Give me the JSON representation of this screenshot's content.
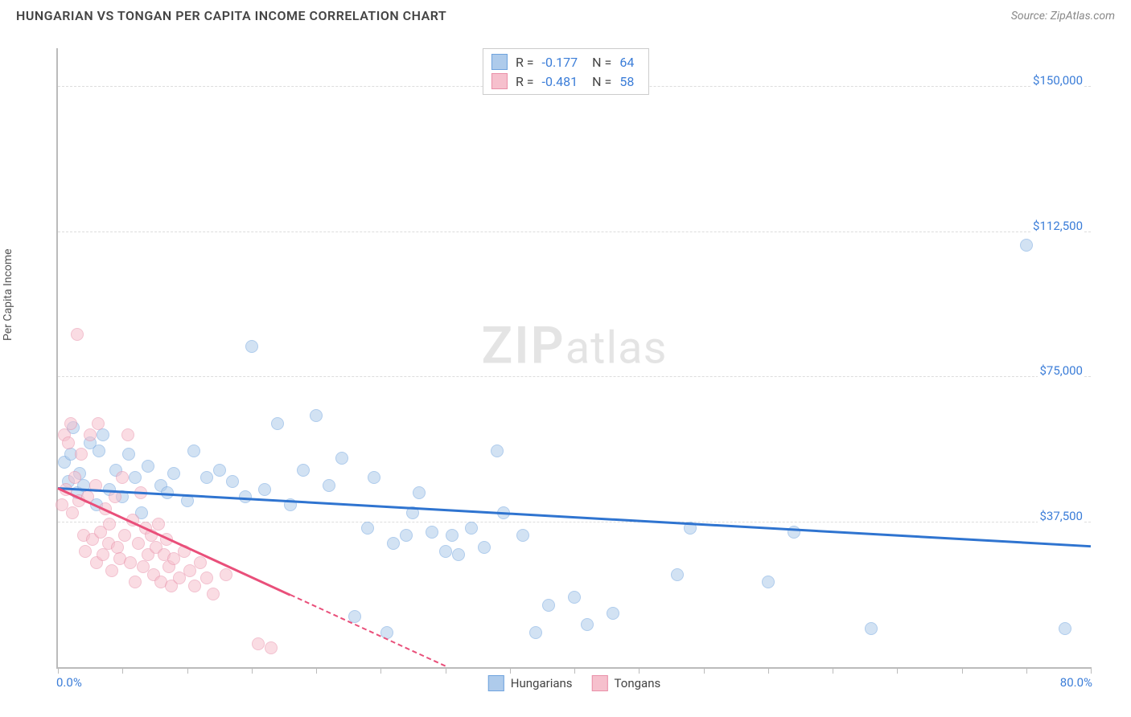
{
  "header": {
    "title": "HUNGARIAN VS TONGAN PER CAPITA INCOME CORRELATION CHART",
    "source_label": "Source: ZipAtlas.com"
  },
  "chart": {
    "type": "scatter",
    "ylabel": "Per Capita Income",
    "xlim": [
      0,
      80
    ],
    "ylim": [
      0,
      160000
    ],
    "x_tick_positions": [
      0,
      5,
      10,
      15,
      20,
      25,
      30,
      35,
      40,
      45,
      50,
      55,
      60,
      65,
      70,
      75,
      80
    ],
    "x_axis_min_label": "0.0%",
    "x_axis_max_label": "80.0%",
    "y_gridlines": [
      37500,
      75000,
      112500,
      150000
    ],
    "y_tick_labels": [
      "$37,500",
      "$75,000",
      "$112,500",
      "$150,000"
    ],
    "grid_color": "#dddddd",
    "axis_color": "#bbbbbb",
    "background_color": "#ffffff",
    "tick_label_color": "#3b7dd8",
    "marker_radius": 8,
    "marker_opacity": 0.55,
    "watermark_text_bold": "ZIP",
    "watermark_text_light": "atlas"
  },
  "legend_top": {
    "rows": [
      {
        "swatch_fill": "#aecbeb",
        "swatch_border": "#6fa3de",
        "r_label": "R =",
        "r_value": "-0.177",
        "n_label": "N =",
        "n_value": "64"
      },
      {
        "swatch_fill": "#f6c0cd",
        "swatch_border": "#e98fa8",
        "r_label": "R =",
        "r_value": "-0.481",
        "n_label": "N =",
        "n_value": "58"
      }
    ]
  },
  "legend_bottom": {
    "items": [
      {
        "swatch_fill": "#aecbeb",
        "swatch_border": "#6fa3de",
        "label": "Hungarians"
      },
      {
        "swatch_fill": "#f6c0cd",
        "swatch_border": "#e98fa8",
        "label": "Tongans"
      }
    ]
  },
  "series": [
    {
      "name": "Hungarians",
      "fill": "#aecbeb",
      "border": "#6fa3de",
      "trend": {
        "x1": 0,
        "y1": 46000,
        "x2": 80,
        "y2": 31000,
        "dash_after_x": null,
        "color": "#2f74d0"
      },
      "points": [
        [
          0.5,
          53000
        ],
        [
          0.8,
          48000
        ],
        [
          1.0,
          55000
        ],
        [
          1.2,
          62000
        ],
        [
          1.5,
          45000
        ],
        [
          1.7,
          50000
        ],
        [
          2.0,
          47000
        ],
        [
          2.5,
          58000
        ],
        [
          3.0,
          42000
        ],
        [
          3.2,
          56000
        ],
        [
          3.5,
          60000
        ],
        [
          4.0,
          46000
        ],
        [
          4.5,
          51000
        ],
        [
          5.0,
          44000
        ],
        [
          5.5,
          55000
        ],
        [
          6.0,
          49000
        ],
        [
          6.5,
          40000
        ],
        [
          7.0,
          52000
        ],
        [
          8.0,
          47000
        ],
        [
          8.5,
          45000
        ],
        [
          9.0,
          50000
        ],
        [
          10.0,
          43000
        ],
        [
          10.5,
          56000
        ],
        [
          11.5,
          49000
        ],
        [
          12.5,
          51000
        ],
        [
          13.5,
          48000
        ],
        [
          14.5,
          44000
        ],
        [
          15.0,
          83000
        ],
        [
          16.0,
          46000
        ],
        [
          17.0,
          63000
        ],
        [
          18.0,
          42000
        ],
        [
          19.0,
          51000
        ],
        [
          20.0,
          65000
        ],
        [
          21.0,
          47000
        ],
        [
          22.0,
          54000
        ],
        [
          23.0,
          13000
        ],
        [
          24.0,
          36000
        ],
        [
          24.5,
          49000
        ],
        [
          25.5,
          9000
        ],
        [
          26.0,
          32000
        ],
        [
          27.0,
          34000
        ],
        [
          27.5,
          40000
        ],
        [
          28.0,
          45000
        ],
        [
          29.0,
          35000
        ],
        [
          30.0,
          30000
        ],
        [
          30.5,
          34000
        ],
        [
          31.0,
          29000
        ],
        [
          32.0,
          36000
        ],
        [
          33.0,
          31000
        ],
        [
          34.0,
          56000
        ],
        [
          34.5,
          40000
        ],
        [
          36.0,
          34000
        ],
        [
          37.0,
          9000
        ],
        [
          38.0,
          16000
        ],
        [
          40.0,
          18000
        ],
        [
          41.0,
          11000
        ],
        [
          43.0,
          14000
        ],
        [
          48.0,
          24000
        ],
        [
          49.0,
          36000
        ],
        [
          55.0,
          22000
        ],
        [
          57.0,
          35000
        ],
        [
          63.0,
          10000
        ],
        [
          75.0,
          109000
        ],
        [
          78.0,
          10000
        ]
      ]
    },
    {
      "name": "Tongans",
      "fill": "#f6c0cd",
      "border": "#e98fa8",
      "trend": {
        "x1": 0,
        "y1": 46000,
        "x2": 30,
        "y2": 0,
        "dash_after_x": 18,
        "color": "#e94f7a"
      },
      "points": [
        [
          0.3,
          42000
        ],
        [
          0.5,
          60000
        ],
        [
          0.6,
          46000
        ],
        [
          0.8,
          58000
        ],
        [
          1.0,
          63000
        ],
        [
          1.1,
          40000
        ],
        [
          1.3,
          49000
        ],
        [
          1.5,
          86000
        ],
        [
          1.6,
          43000
        ],
        [
          1.8,
          55000
        ],
        [
          2.0,
          34000
        ],
        [
          2.1,
          30000
        ],
        [
          2.3,
          44000
        ],
        [
          2.5,
          60000
        ],
        [
          2.7,
          33000
        ],
        [
          2.9,
          47000
        ],
        [
          3.0,
          27000
        ],
        [
          3.1,
          63000
        ],
        [
          3.3,
          35000
        ],
        [
          3.5,
          29000
        ],
        [
          3.7,
          41000
        ],
        [
          3.9,
          32000
        ],
        [
          4.0,
          37000
        ],
        [
          4.2,
          25000
        ],
        [
          4.4,
          44000
        ],
        [
          4.6,
          31000
        ],
        [
          4.8,
          28000
        ],
        [
          5.0,
          49000
        ],
        [
          5.2,
          34000
        ],
        [
          5.4,
          60000
        ],
        [
          5.6,
          27000
        ],
        [
          5.8,
          38000
        ],
        [
          6.0,
          22000
        ],
        [
          6.2,
          32000
        ],
        [
          6.4,
          45000
        ],
        [
          6.6,
          26000
        ],
        [
          6.8,
          36000
        ],
        [
          7.0,
          29000
        ],
        [
          7.2,
          34000
        ],
        [
          7.4,
          24000
        ],
        [
          7.6,
          31000
        ],
        [
          7.8,
          37000
        ],
        [
          8.0,
          22000
        ],
        [
          8.2,
          29000
        ],
        [
          8.4,
          33000
        ],
        [
          8.6,
          26000
        ],
        [
          8.8,
          21000
        ],
        [
          9.0,
          28000
        ],
        [
          9.4,
          23000
        ],
        [
          9.8,
          30000
        ],
        [
          10.2,
          25000
        ],
        [
          10.6,
          21000
        ],
        [
          11.0,
          27000
        ],
        [
          11.5,
          23000
        ],
        [
          12.0,
          19000
        ],
        [
          13.0,
          24000
        ],
        [
          15.5,
          6000
        ],
        [
          16.5,
          5000
        ]
      ]
    }
  ]
}
